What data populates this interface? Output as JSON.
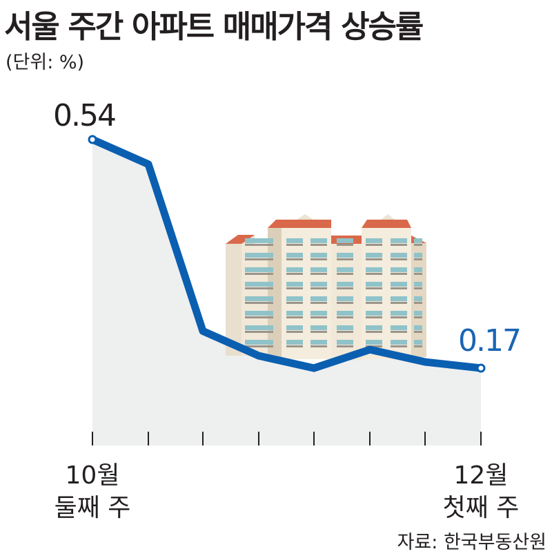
{
  "title": "서울 주간 아파트 매매가격 상승률",
  "unit": "(단위: %)",
  "source": "자료: 한국부동산원",
  "chart_data": {
    "type": "area",
    "title": "서울 주간 아파트 매매가격 상승률",
    "ylabel": "(단위: %)",
    "x_labels": [
      [
        "10월",
        "둘째 주"
      ],
      "",
      "",
      "",
      "",
      "",
      "",
      [
        "12월",
        "첫째 주"
      ]
    ],
    "values": [
      0.54,
      0.5,
      0.23,
      0.19,
      0.17,
      0.2,
      0.18,
      0.17
    ],
    "data_labels": {
      "first": "0.54",
      "last": "0.17"
    },
    "ylim": [
      0,
      0.6
    ],
    "grid": false,
    "legend": "none",
    "line_color": "#0a5fb0",
    "fill_color": "#eeefef"
  }
}
